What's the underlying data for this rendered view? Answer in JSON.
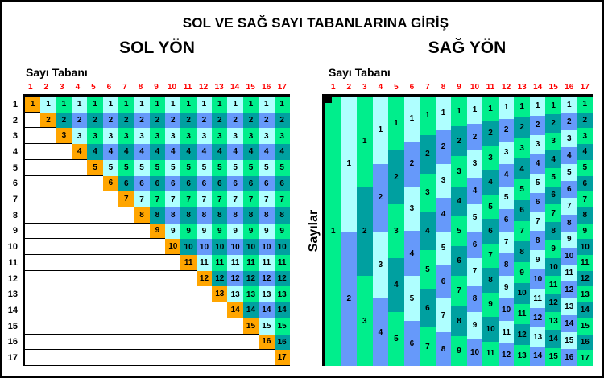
{
  "title": "SOL VE SAĞ SAYI TABANLARINA GİRİŞ",
  "colors": {
    "orange": "#FFA500",
    "spring_green": "#00EE8C",
    "teal": "#00A0A0",
    "pale_cyan": "#AFFFFF",
    "cornflower_blue": "#6699FA",
    "header_red": "#FF0000",
    "text_black": "#000000",
    "background_white": "#FFFFFF"
  },
  "left_panel": {
    "title": "SOL YÖN",
    "axis_label": "Sayı Tabanı",
    "col_headers": [
      1,
      2,
      3,
      4,
      5,
      6,
      7,
      8,
      9,
      10,
      11,
      12,
      13,
      14,
      15,
      16,
      17
    ],
    "row_labels": [
      1,
      2,
      3,
      4,
      5,
      6,
      7,
      8,
      9,
      10,
      11,
      12,
      13,
      14,
      15,
      16,
      17
    ]
  },
  "right_panel": {
    "title": "SAĞ YÖN",
    "axis_label": "Sayı Tabanı",
    "side_label": "Sayılar",
    "col_headers": [
      1,
      2,
      3,
      4,
      5,
      6,
      7,
      8,
      9,
      10,
      11,
      12,
      13,
      14,
      15,
      16,
      17
    ]
  },
  "chart_data": [
    {
      "type": "heatmap",
      "panel": "SOL YÖN",
      "xlabel": "Sayı Tabanı",
      "x_range": [
        1,
        17
      ],
      "y_range": [
        1,
        17
      ],
      "rows": [
        {
          "value": 1,
          "start_col": 1,
          "end_col": 17
        },
        {
          "value": 2,
          "start_col": 2,
          "end_col": 17
        },
        {
          "value": 3,
          "start_col": 3,
          "end_col": 17
        },
        {
          "value": 4,
          "start_col": 4,
          "end_col": 17
        },
        {
          "value": 5,
          "start_col": 5,
          "end_col": 17
        },
        {
          "value": 6,
          "start_col": 6,
          "end_col": 17
        },
        {
          "value": 7,
          "start_col": 7,
          "end_col": 17
        },
        {
          "value": 8,
          "start_col": 8,
          "end_col": 17
        },
        {
          "value": 9,
          "start_col": 9,
          "end_col": 17
        },
        {
          "value": 10,
          "start_col": 10,
          "end_col": 17
        },
        {
          "value": 11,
          "start_col": 11,
          "end_col": 17
        },
        {
          "value": 12,
          "start_col": 12,
          "end_col": 17
        },
        {
          "value": 13,
          "start_col": 13,
          "end_col": 17
        },
        {
          "value": 14,
          "start_col": 14,
          "end_col": 17
        },
        {
          "value": 15,
          "start_col": 15,
          "end_col": 17
        },
        {
          "value": 16,
          "start_col": 16,
          "end_col": 17
        },
        {
          "value": 17,
          "start_col": 17,
          "end_col": 17
        }
      ]
    },
    {
      "type": "heatmap",
      "panel": "SAĞ YÖN",
      "xlabel": "Sayı Tabanı",
      "ylabel": "Sayılar",
      "x_range": [
        1,
        17
      ],
      "columns": [
        {
          "base": 1,
          "blocks": [
            1
          ]
        },
        {
          "base": 2,
          "blocks": [
            1,
            2
          ]
        },
        {
          "base": 3,
          "blocks": [
            1,
            2,
            3
          ]
        },
        {
          "base": 4,
          "blocks": [
            1,
            2,
            3,
            4
          ]
        },
        {
          "base": 5,
          "blocks": [
            1,
            2,
            3,
            4,
            5
          ]
        },
        {
          "base": 6,
          "blocks": [
            1,
            2,
            3,
            4,
            5,
            6
          ]
        },
        {
          "base": 7,
          "blocks": [
            1,
            2,
            3,
            4,
            5,
            6,
            7
          ]
        },
        {
          "base": 8,
          "blocks": [
            1,
            2,
            3,
            4,
            5,
            6,
            7,
            8
          ]
        },
        {
          "base": 9,
          "blocks": [
            1,
            2,
            3,
            4,
            5,
            6,
            7,
            8,
            9
          ]
        },
        {
          "base": 10,
          "blocks": [
            1,
            2,
            3,
            4,
            5,
            6,
            7,
            8,
            9,
            10
          ]
        },
        {
          "base": 11,
          "blocks": [
            1,
            2,
            3,
            4,
            5,
            6,
            7,
            8,
            9,
            10,
            11
          ]
        },
        {
          "base": 12,
          "blocks": [
            1,
            2,
            3,
            4,
            5,
            6,
            7,
            8,
            9,
            10,
            11,
            12
          ]
        },
        {
          "base": 13,
          "blocks": [
            1,
            2,
            3,
            4,
            5,
            6,
            7,
            8,
            9,
            10,
            11,
            12,
            13
          ]
        },
        {
          "base": 14,
          "blocks": [
            1,
            2,
            3,
            4,
            5,
            6,
            7,
            8,
            9,
            10,
            11,
            12,
            13,
            14
          ]
        },
        {
          "base": 15,
          "blocks": [
            1,
            2,
            3,
            4,
            5,
            6,
            7,
            8,
            9,
            10,
            11,
            12,
            13,
            14,
            15
          ]
        },
        {
          "base": 16,
          "blocks": [
            1,
            2,
            3,
            4,
            5,
            6,
            7,
            8,
            9,
            10,
            11,
            12,
            13,
            14,
            15,
            16
          ]
        },
        {
          "base": 17,
          "blocks": [
            1,
            2,
            3,
            4,
            5,
            6,
            7,
            8,
            9,
            10,
            11,
            12,
            13,
            14,
            15,
            16,
            17
          ]
        }
      ]
    }
  ]
}
